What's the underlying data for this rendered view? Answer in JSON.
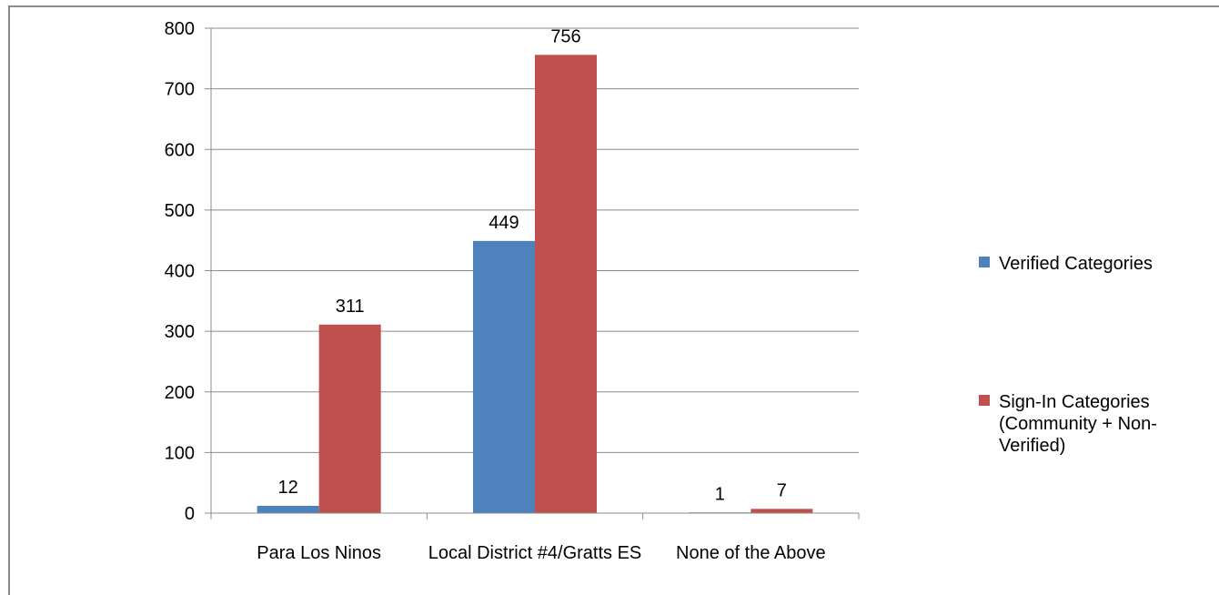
{
  "chart_data": {
    "type": "bar",
    "title": "",
    "xlabel": "",
    "ylabel": "",
    "categories": [
      "Para Los Ninos",
      "Local District #4/Gratts ES",
      "None of the Above"
    ],
    "series": [
      {
        "name": "Verified Categories",
        "values": [
          12,
          449,
          1
        ],
        "color": "#4f81bd",
        "label_lines": [
          "Verified Categories"
        ]
      },
      {
        "name": "Sign-In Categories (Community + Non-Verified)",
        "values": [
          311,
          756,
          7
        ],
        "color": "#c0504d",
        "label_lines": [
          "Sign-In Categories",
          "(Community + Non-",
          "Verified)"
        ]
      }
    ],
    "ylim": [
      0,
      800
    ],
    "yticks": [
      0,
      100,
      200,
      300,
      400,
      500,
      600,
      700,
      800
    ],
    "grid": true,
    "legend_position": "right",
    "data_labels": true
  }
}
